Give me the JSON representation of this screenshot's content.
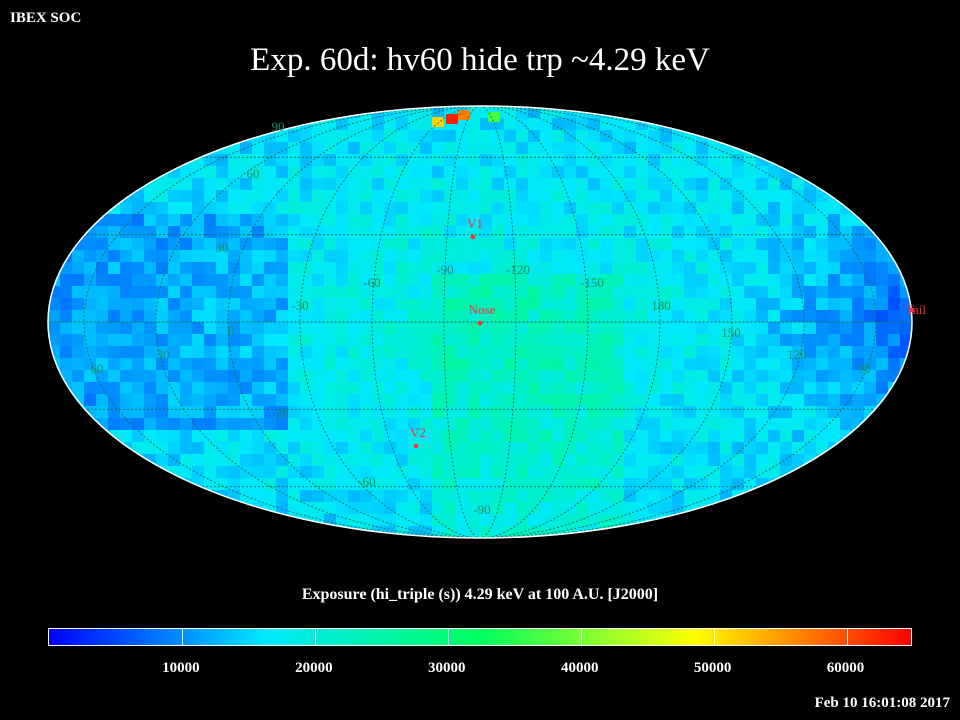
{
  "header": {
    "corner_label": "IBEX SOC",
    "title": "Exp.   60d: hv60 hide trp ~4.29 keV"
  },
  "map": {
    "projection": "Mollweide",
    "colormap": [
      "#0000ff",
      "#00e8ff",
      "#00ff60",
      "#ffff00",
      "#ff0000"
    ],
    "markers": [
      {
        "name": "V1",
        "label": "V1",
        "color": "#ff3030",
        "lon": 255,
        "lat": 35
      },
      {
        "name": "Nose",
        "label": "Nose",
        "color": "#ff3030",
        "lon": 255,
        "lat": 5
      },
      {
        "name": "V2",
        "label": "V2",
        "color": "#ff3030",
        "lon": 290,
        "lat": -33
      },
      {
        "name": "Tail",
        "label": "Tail",
        "color": "#ff3030",
        "lon": 75,
        "lat": -5
      }
    ],
    "graticule_labels": {
      "longitude": [
        "-90",
        "-120",
        "-150",
        "180",
        "150",
        "120",
        "90",
        "-60",
        "-30",
        "0",
        "30",
        "60"
      ],
      "latitude": [
        "90",
        "60",
        "30",
        "-30",
        "-60",
        "-90"
      ]
    }
  },
  "colorbar": {
    "label": "Exposure (hi_triple (s))  4.29 keV at 100 A.U. [J2000]",
    "range": [
      0,
      65000
    ],
    "ticks": [
      "10000",
      "20000",
      "30000",
      "40000",
      "50000",
      "60000"
    ]
  },
  "footer": {
    "timestamp": "Feb 10 16:01:08 2017"
  }
}
